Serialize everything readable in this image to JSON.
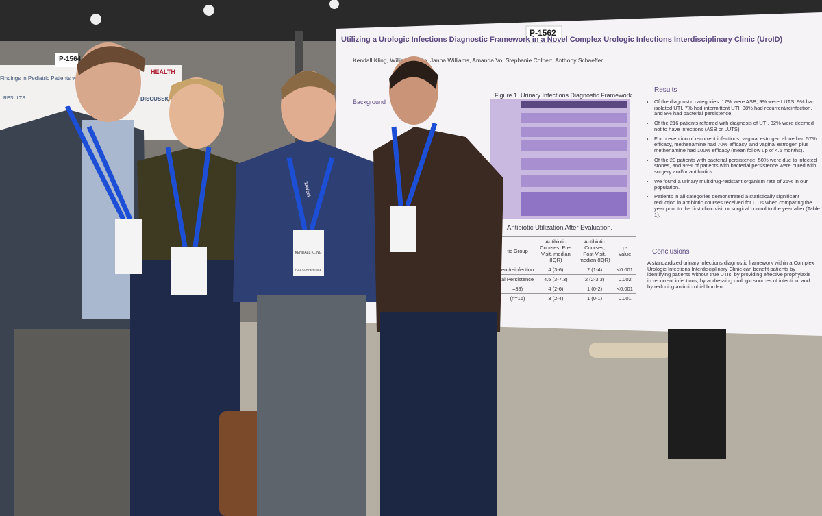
{
  "posters": [
    {
      "number": "P-1562",
      "title": "Utilizing a Urologic Infections Diagnostic Framework in a Novel Complex Urologic Infections Interdisciplinary Clinic (UroID)",
      "authors": "Kendall Kling, William Moore, Janna Williams, Amanda Vo, Stephanie Colbert, Anthony Schaeffer",
      "background_heading": "Background",
      "figure_caption": "Figure 1. Urinary Infections Diagnostic Framework.",
      "table_caption": "Antibiotic Utilization After Evaluation.",
      "table": {
        "header": [
          "tic Group",
          "Antibiotic Courses, Pre-Visit, median (IQR)",
          "Antibiotic Courses, Post-Visit, median (IQR)",
          "p-value"
        ],
        "rows": [
          [
            "ent/reinfection",
            "4 (3-6)",
            "2 (1-4)",
            "<0.001"
          ],
          [
            "al Persistence",
            "4.5 (3-7.3)",
            "2 (2-3.3)",
            "0.002"
          ],
          [
            "=39)",
            "4 (2-6)",
            "1 (0-2)",
            "<0.001"
          ],
          [
            "(n=15)",
            "3 (2-4)",
            "1 (0-1)",
            "0.001"
          ]
        ]
      },
      "results_heading": "Results",
      "results": [
        "Of the diagnostic categories: 17% were ASB, 9% were LUTS, 9% had isolated UTI, 7% had intermittent UTI, 38% had recurrent/reinfection, and 8% had bacterial persistence.",
        "Of the 216 patients referred with diagnosis of UTI, 32% were deemed not to have infections (ASB or LUTS).",
        "For prevention of recurrent infections, vaginal estrogen alone had 57% efficacy, methenamine had 70% efficacy, and vaginal estrogen plus methenamine had 100% efficacy (mean follow up of 4.5 months).",
        "Of the 20 patients with bacterial persistence, 50% were due to infected stones, and 95% of patients with bacterial persistence were cured with surgery and/or antibiotics.",
        "We found a urinary multidrug-resistant organism rate of 25% in our population.",
        "Patients in all categories demonstrated a statistically significant reduction in antibiotic courses received for UTIs when comparing the year prior to the first clinic visit or surgical control to the year after (Table 1)."
      ],
      "conclusions_heading": "Conclusions",
      "conclusions": "A standardized urinary infections diagnostic framework within a Complex Urologic Infections Interdisciplinary Clinic can benefit patients by identifying patients without true UTIs, by providing effective prophylaxis in recurrent infections, by addressing urologic sources of infection, and by reducing antimicrobial burden."
    },
    {
      "number": "P-1564",
      "title": "Findings in Pediatric Patients with Renal Abscess",
      "logo": "HEALTH",
      "section": "DISCUSSION",
      "results_heading": "RESULTS"
    }
  ],
  "badges": {
    "lanyard": "IDWeek",
    "name": "KENDALL KLING",
    "type": "FULL CONFERENCE"
  }
}
